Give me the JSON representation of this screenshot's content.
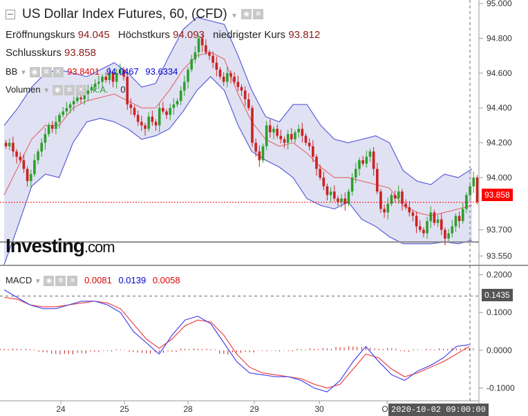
{
  "header": {
    "title": "US Dollar Index Futures, 60, (CFD)",
    "open_label": "Eröffnungskurs",
    "open_value": "94.045",
    "high_label": "Höchstkurs",
    "high_value": "94.093",
    "low_label": "niedrigster Kurs",
    "low_value": "93.812",
    "close_label": "Schlusskurs",
    "close_value": "93.858"
  },
  "indicators": {
    "bb_label": "BB",
    "bb_values": [
      "93.8401",
      "94.0467",
      "93.6334"
    ],
    "volume_label": "Volumen",
    "volume_na": "k.A.",
    "volume_value": "0",
    "macd_label": "MACD",
    "macd_values": [
      "0.0081",
      "0.0139",
      "0.0058"
    ]
  },
  "logo": {
    "name": "Investing",
    "suffix": ".com"
  },
  "last_price_tag": "93.858",
  "macd_tag": "0.1435",
  "crosshair_date": "2020-10-02 09:00:00",
  "colors": {
    "up": "#2ca02c",
    "down": "#cc2222",
    "bb_band": "#5b5fd8",
    "bb_fill": "#d8daf0",
    "bb_mid": "#e07070",
    "macd_line": "#4444ee",
    "signal_line": "#ee4444",
    "last_price": "#ff0000"
  },
  "chart_data": [
    {
      "type": "candlestick",
      "title": "US Dollar Index Futures, 60, (CFD)",
      "y_ticks": [
        "95.000",
        "94.800",
        "94.600",
        "94.400",
        "94.200",
        "94.000",
        "93.700",
        "93.550"
      ],
      "ylim": [
        93.5,
        95.02
      ],
      "x_ticks": [
        "24",
        "25",
        "28",
        "29",
        "30",
        "Ok"
      ],
      "x_tick_positions": [
        8,
        18,
        28,
        38,
        48,
        58
      ],
      "last_close": 93.858,
      "low_line": 93.63,
      "close_series": [
        94.18,
        94.2,
        94.15,
        94.12,
        94.1,
        94.05,
        93.98,
        94.02,
        94.1,
        94.15,
        94.2,
        94.25,
        94.3,
        94.28,
        94.32,
        94.36,
        94.38,
        94.4,
        94.42,
        94.44,
        94.46,
        94.45,
        94.48,
        94.5,
        94.52,
        94.54,
        94.55,
        94.58,
        94.56,
        94.6,
        94.55,
        94.6,
        94.62,
        94.58,
        94.42,
        94.4,
        94.36,
        94.32,
        94.3,
        94.28,
        94.35,
        94.32,
        94.3,
        94.4,
        94.38,
        94.36,
        94.4,
        94.42,
        94.44,
        94.5,
        94.55,
        94.62,
        94.68,
        94.72,
        94.8,
        94.76,
        94.72,
        94.7,
        94.66,
        94.62,
        94.58,
        94.55,
        94.6,
        94.58,
        94.55,
        94.52,
        94.5,
        94.45,
        94.4,
        94.2,
        94.15,
        94.1,
        94.18,
        94.3,
        94.26,
        94.28,
        94.24,
        94.22,
        94.2,
        94.25,
        94.22,
        94.26,
        94.28,
        94.24,
        94.2,
        94.18,
        94.12,
        94.05,
        94.0,
        93.95,
        93.9,
        93.92,
        93.88,
        93.86,
        93.88,
        93.85,
        93.92,
        94.0,
        94.05,
        94.1,
        94.08,
        94.12,
        94.15,
        94.05,
        93.92,
        93.82,
        93.8,
        93.85,
        93.9,
        93.88,
        93.92,
        93.85,
        93.83,
        93.8,
        93.78,
        93.72,
        93.7,
        93.68,
        93.75,
        93.8,
        93.74,
        93.76,
        93.7,
        93.65,
        93.68,
        93.72,
        93.78,
        93.75,
        93.82,
        93.9,
        93.95,
        94.0,
        93.86
      ],
      "bb_upper": [
        94.3,
        94.4,
        94.52,
        94.6,
        94.62,
        94.6,
        94.58,
        94.62,
        94.66,
        94.6,
        94.52,
        94.54,
        94.7,
        94.85,
        94.92,
        94.9,
        94.88,
        94.7,
        94.5,
        94.35,
        94.32,
        94.42,
        94.42,
        94.3,
        94.22,
        94.2,
        94.22,
        94.24,
        94.2,
        94.04,
        93.98,
        93.96,
        94.02,
        94.0,
        94.05
      ],
      "bb_lower": [
        93.5,
        93.72,
        93.95,
        94.02,
        94.0,
        94.2,
        94.32,
        94.34,
        94.32,
        94.28,
        94.22,
        94.24,
        94.28,
        94.38,
        94.5,
        94.58,
        94.5,
        94.3,
        94.15,
        94.1,
        94.06,
        94.0,
        93.88,
        93.84,
        93.82,
        93.86,
        93.76,
        93.72,
        93.66,
        93.62,
        93.62,
        93.62,
        93.63,
        93.62,
        93.64
      ],
      "bb_middle": [
        93.9,
        94.06,
        94.22,
        94.3,
        94.3,
        94.4,
        94.44,
        94.46,
        94.48,
        94.44,
        94.4,
        94.4,
        94.5,
        94.62,
        94.7,
        94.72,
        94.68,
        94.48,
        94.32,
        94.22,
        94.18,
        94.2,
        94.14,
        94.06,
        94.0,
        94.0,
        93.98,
        93.96,
        93.94,
        93.84,
        93.8,
        93.78,
        93.8,
        93.82,
        93.84
      ]
    },
    {
      "type": "line",
      "title": "MACD",
      "y_ticks": [
        "0.2000",
        "0.1000",
        "0.0000",
        "-0.1000"
      ],
      "ylim": [
        -0.13,
        0.21
      ],
      "macd": [
        0.16,
        0.14,
        0.12,
        0.11,
        0.11,
        0.12,
        0.13,
        0.13,
        0.12,
        0.1,
        0.05,
        0.02,
        -0.01,
        0.04,
        0.08,
        0.09,
        0.07,
        0.02,
        -0.03,
        -0.06,
        -0.065,
        -0.07,
        -0.07,
        -0.08,
        -0.1,
        -0.11,
        -0.08,
        -0.03,
        0.01,
        -0.03,
        -0.065,
        -0.08,
        -0.055,
        -0.04,
        -0.02,
        0.01,
        0.015
      ],
      "signal": [
        0.14,
        0.135,
        0.12,
        0.115,
        0.115,
        0.12,
        0.125,
        0.13,
        0.125,
        0.11,
        0.07,
        0.03,
        0.005,
        0.03,
        0.065,
        0.08,
        0.075,
        0.04,
        -0.01,
        -0.045,
        -0.06,
        -0.065,
        -0.07,
        -0.075,
        -0.09,
        -0.1,
        -0.09,
        -0.05,
        -0.01,
        -0.02,
        -0.05,
        -0.07,
        -0.06,
        -0.045,
        -0.03,
        -0.01,
        0.01
      ],
      "histogram": [
        0.004,
        0.004,
        0.003,
        -0.005,
        -0.01,
        -0.01,
        -0.008,
        -0.004,
        -0.002,
        0.002,
        -0.005,
        -0.008,
        -0.006,
        -0.004,
        0.004,
        0.004,
        0.003,
        -0.01,
        -0.006,
        -0.005,
        -0.002,
        -0.002,
        -0.002,
        0.003,
        0.004,
        0.005,
        0.008,
        0.01,
        0.008,
        0.004,
        0.005,
        -0.003,
        0.002,
        0.003,
        0.004,
        0.005,
        0.006
      ]
    }
  ]
}
